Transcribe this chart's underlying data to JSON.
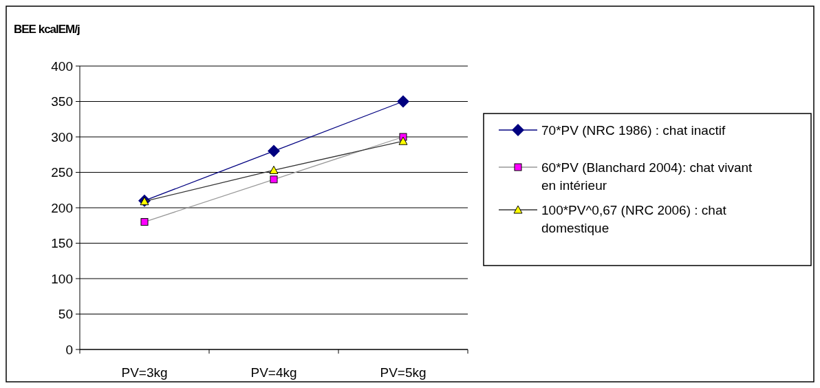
{
  "chart_data": {
    "type": "line",
    "title": "BEE kcalEM/j",
    "categories": [
      "PV=3kg",
      "PV=4kg",
      "PV=5kg"
    ],
    "series": [
      {
        "name": "70*PV (NRC 1986) : chat inactif",
        "color": "#000080",
        "marker": "diamond",
        "values": [
          210,
          280,
          350
        ]
      },
      {
        "name": "60*PV (Blanchard 2004): chat vivant en intérieur",
        "color": "#999999",
        "marker": "square",
        "values": [
          180,
          240,
          300
        ]
      },
      {
        "name": "100*PV^0,67 (NRC 2006) : chat domestique",
        "color": "#333333",
        "marker": "triangle",
        "values": [
          209,
          253,
          294
        ]
      }
    ],
    "ylim": [
      0,
      400
    ],
    "yticks": [
      0,
      50,
      100,
      150,
      200,
      250,
      300,
      350,
      400
    ],
    "grid": "y",
    "legend": "right"
  }
}
